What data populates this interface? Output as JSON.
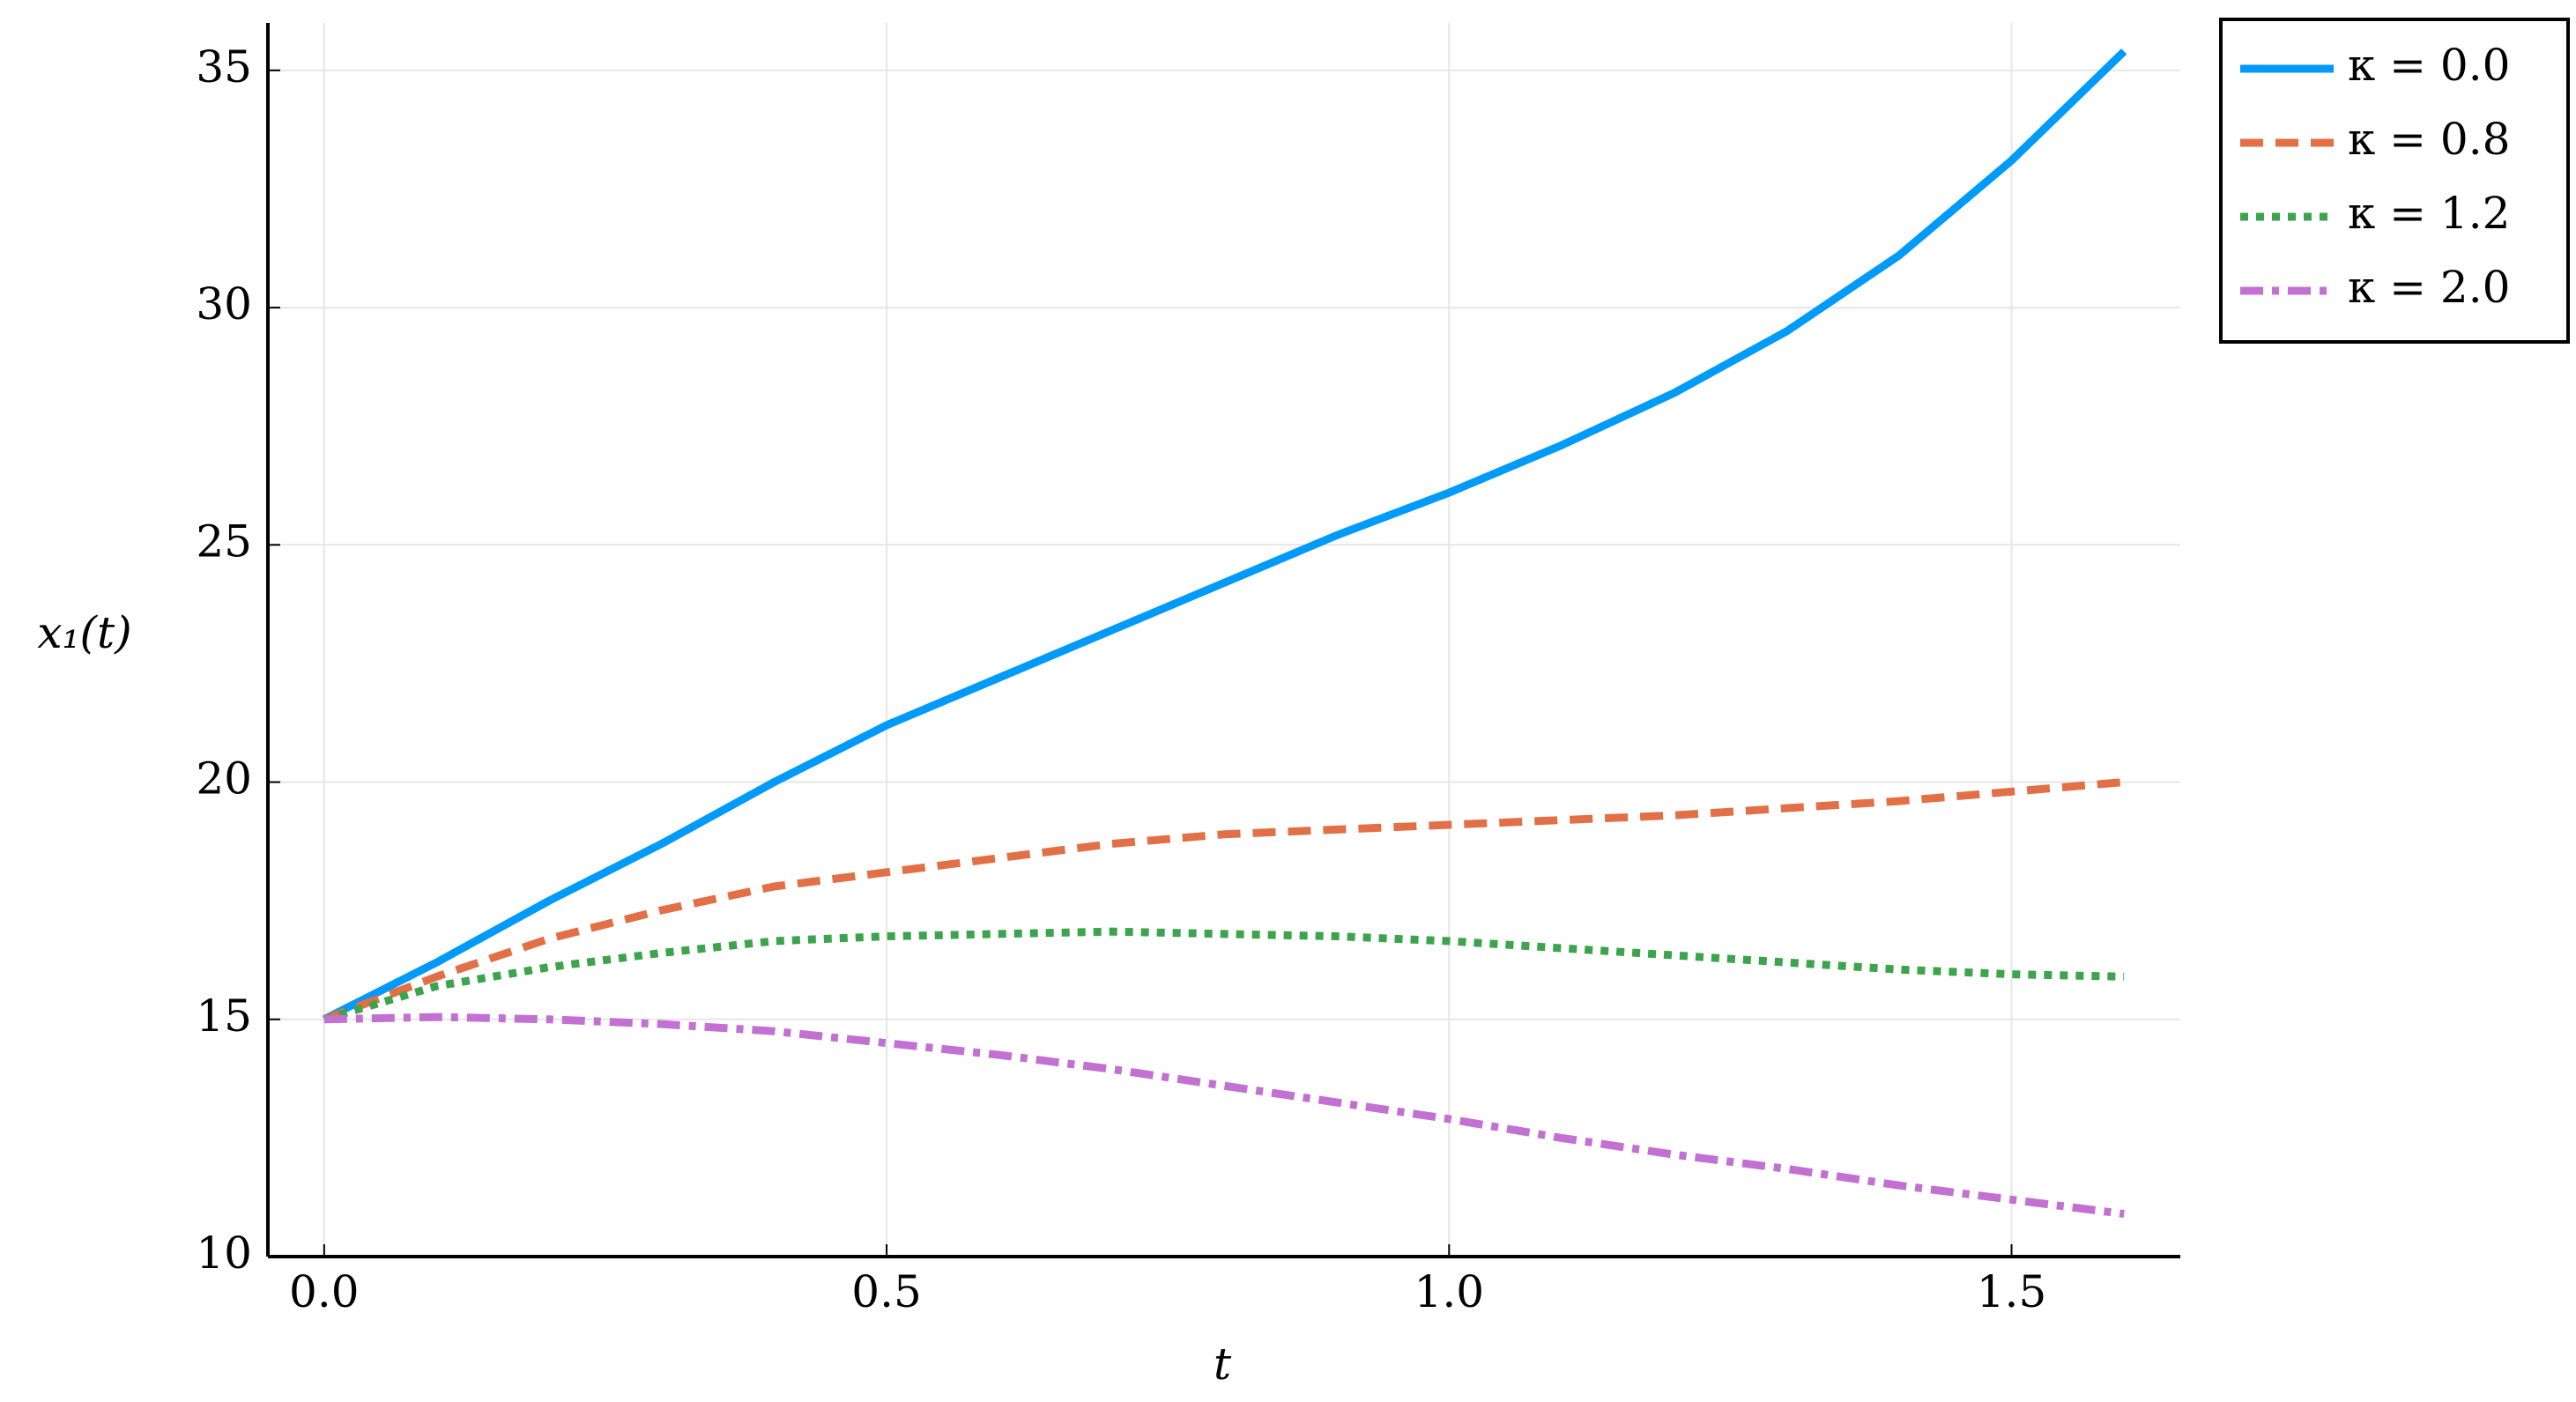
{
  "chart_data": {
    "type": "line",
    "x_label": "t",
    "y_label": "x₁(t)",
    "x": [
      0,
      0.1,
      0.2,
      0.3,
      0.4,
      0.5,
      0.6,
      0.7,
      0.8,
      0.9,
      1.0,
      1.1,
      1.2,
      1.3,
      1.4,
      1.5,
      1.6
    ],
    "series": [
      {
        "name": "κ = 0.0",
        "color": "#009af9",
        "style": "solid",
        "values": [
          15,
          16.2,
          17.5,
          18.7,
          20.0,
          21.2,
          22.2,
          23.2,
          24.2,
          25.2,
          26.1,
          27.1,
          28.2,
          29.5,
          31.1,
          33.1,
          35.4
        ]
      },
      {
        "name": "κ = 0.8",
        "color": "#e26f46",
        "style": "dash",
        "values": [
          15,
          15.9,
          16.7,
          17.3,
          17.8,
          18.1,
          18.4,
          18.7,
          18.9,
          19.0,
          19.1,
          19.2,
          19.3,
          19.45,
          19.6,
          19.8,
          20.0
        ]
      },
      {
        "name": "κ = 1.2",
        "color": "#3da44d",
        "style": "dot",
        "values": [
          15,
          15.7,
          16.1,
          16.4,
          16.65,
          16.75,
          16.8,
          16.85,
          16.8,
          16.75,
          16.65,
          16.5,
          16.35,
          16.2,
          16.05,
          15.95,
          15.9
        ]
      },
      {
        "name": "κ = 2.0",
        "color": "#c271d2",
        "style": "dashdot",
        "values": [
          15,
          15.05,
          15.0,
          14.9,
          14.75,
          14.5,
          14.25,
          13.95,
          13.6,
          13.25,
          12.9,
          12.5,
          12.15,
          11.85,
          11.5,
          11.2,
          10.9
        ]
      }
    ],
    "xlim": [
      -0.05,
      1.65
    ],
    "xticks": [
      {
        "value": 0,
        "label": "0.0"
      },
      0.5,
      {
        "value": 1,
        "label": "1.0"
      },
      1.5
    ],
    "ylim": [
      10,
      36
    ],
    "yticks": [
      10,
      15,
      20,
      25,
      30,
      35
    ],
    "grid": true
  }
}
